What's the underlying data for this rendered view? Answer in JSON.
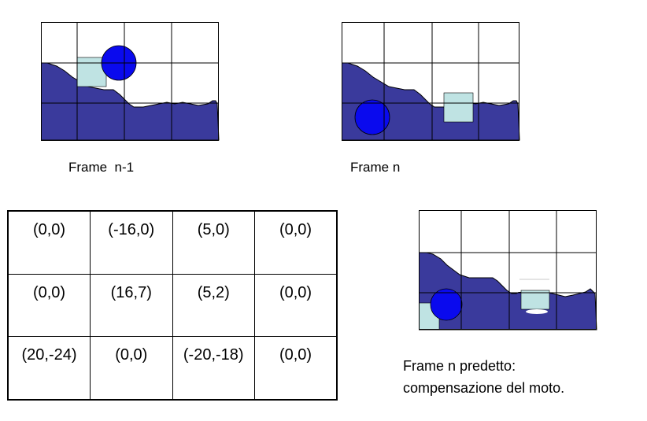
{
  "frames": {
    "prev_caption": "Frame  n-1",
    "curr_caption": "Frame n"
  },
  "motion_vectors": {
    "rows": [
      [
        "(0,0)",
        "(-16,0)",
        "(5,0)",
        "(0,0)"
      ],
      [
        "(0,0)",
        "(16,7)",
        "(5,2)",
        "(0,0)"
      ],
      [
        "(20,-24)",
        "(0,0)",
        "(-20,-18)",
        "(0,0)"
      ]
    ]
  },
  "predicted": {
    "caption_line1": "Frame n predetto:",
    "caption_line2": "compensazione del moto."
  },
  "colors": {
    "terrain": "#3a3a9c",
    "ball": "#0a0aee",
    "box": "#bfe3e3",
    "grid": "#000000"
  }
}
